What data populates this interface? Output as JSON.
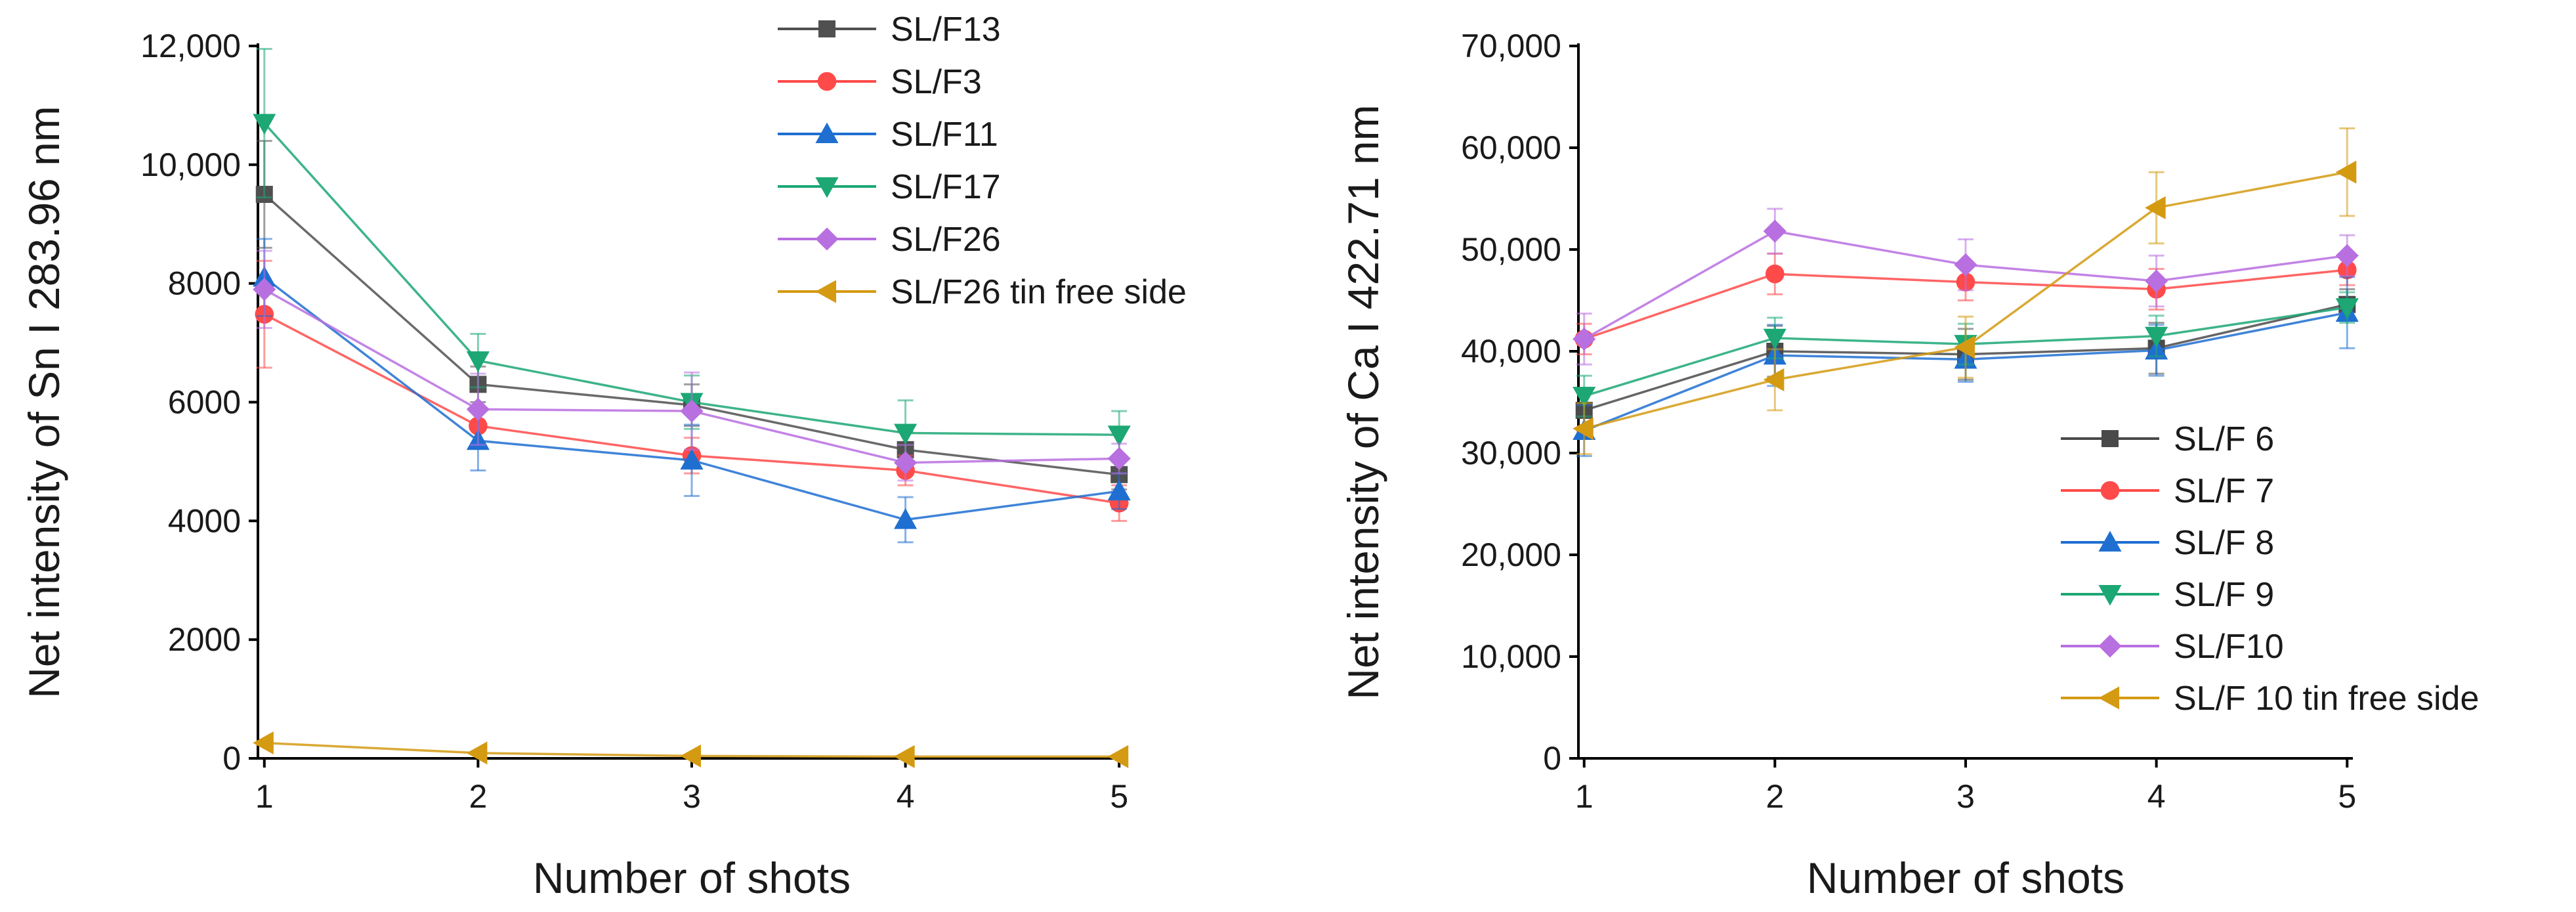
{
  "chart_data": [
    {
      "type": "line",
      "xlabel": "Number of shots",
      "ylabel": "Net intensity of Sn I 283.96 nm",
      "x": [
        1,
        2,
        3,
        4,
        5
      ],
      "xlim": [
        0.97,
        5.03
      ],
      "ylim": [
        0,
        12000
      ],
      "yticks": [
        0,
        2000,
        4000,
        6000,
        8000,
        10000,
        12000
      ],
      "ytick_labels": [
        "0",
        "2000",
        "4000",
        "6000",
        "8000",
        "10,000",
        "12,000"
      ],
      "grid": false,
      "legend_position": "top-right",
      "series": [
        {
          "name": "SL/F13",
          "color": "#505050",
          "marker": "square",
          "values": [
            9500,
            6300,
            5950,
            5200,
            4780
          ],
          "errors": [
            900,
            300,
            350,
            300,
            250
          ]
        },
        {
          "name": "SL/F3",
          "color": "#ff4a4a",
          "marker": "circle",
          "values": [
            7480,
            5600,
            5100,
            4850,
            4300
          ],
          "errors": [
            900,
            300,
            300,
            250,
            300
          ]
        },
        {
          "name": "SL/F11",
          "color": "#1f6fd1",
          "marker": "triangle-up",
          "values": [
            8100,
            5350,
            5020,
            4020,
            4500
          ],
          "errors": [
            650,
            500,
            600,
            380,
            300
          ]
        },
        {
          "name": "SL/F17",
          "color": "#1ca774",
          "marker": "triangle-down",
          "values": [
            10700,
            6700,
            6000,
            5480,
            5450
          ],
          "errors": [
            1250,
            450,
            450,
            550,
            400
          ]
        },
        {
          "name": "SL/F26",
          "color": "#b86fe0",
          "marker": "diamond",
          "values": [
            7900,
            5880,
            5850,
            4980,
            5050
          ],
          "errors": [
            650,
            600,
            650,
            300,
            250
          ]
        },
        {
          "name": "SL/F26 tin free side",
          "color": "#d49a12",
          "marker": "triangle-left",
          "values": [
            260,
            90,
            40,
            30,
            30
          ],
          "errors": [
            30,
            20,
            10,
            10,
            10
          ]
        }
      ]
    },
    {
      "type": "line",
      "xlabel": "Number of shots",
      "ylabel": "Net intensity of Ca I 422.71 nm",
      "x": [
        1,
        2,
        3,
        4,
        5
      ],
      "xlim": [
        0.97,
        5.03
      ],
      "ylim": [
        0,
        70000
      ],
      "yticks": [
        0,
        10000,
        20000,
        30000,
        40000,
        50000,
        60000,
        70000
      ],
      "ytick_labels": [
        "0",
        "10,000",
        "20,000",
        "30,000",
        "40,000",
        "50,000",
        "60,000",
        "70,000"
      ],
      "grid": false,
      "legend_position": "bottom-right",
      "series": [
        {
          "name": "SL/F 6",
          "color": "#4a4a4a",
          "marker": "square",
          "values": [
            34200,
            40000,
            39700,
            40300,
            44600
          ],
          "errors": [
            2000,
            2500,
            2500,
            2500,
            1500
          ]
        },
        {
          "name": "SL/F 7",
          "color": "#ff4a4a",
          "marker": "circle",
          "values": [
            41200,
            47600,
            46800,
            46100,
            48000
          ],
          "errors": [
            1500,
            2000,
            1800,
            2000,
            1500
          ]
        },
        {
          "name": "SL/F 8",
          "color": "#1f6fd1",
          "marker": "triangle-up",
          "values": [
            32200,
            39600,
            39200,
            40100,
            43800
          ],
          "errors": [
            2500,
            3000,
            2200,
            2500,
            3500
          ]
        },
        {
          "name": "SL/F 9",
          "color": "#1ca774",
          "marker": "triangle-down",
          "values": [
            35600,
            41300,
            40700,
            41500,
            44300
          ],
          "errors": [
            2000,
            2000,
            2000,
            2000,
            1500
          ]
        },
        {
          "name": "SL/F10",
          "color": "#b86fe0",
          "marker": "diamond",
          "values": [
            41200,
            51800,
            48500,
            46900,
            49400
          ],
          "errors": [
            2500,
            2200,
            2500,
            2500,
            2000
          ]
        },
        {
          "name": "SL/F 10 tin free side",
          "color": "#d49a12",
          "marker": "triangle-left",
          "values": [
            32400,
            37200,
            40400,
            54100,
            57600
          ],
          "errors": [
            2500,
            3000,
            3000,
            3500,
            4300
          ]
        }
      ]
    }
  ]
}
